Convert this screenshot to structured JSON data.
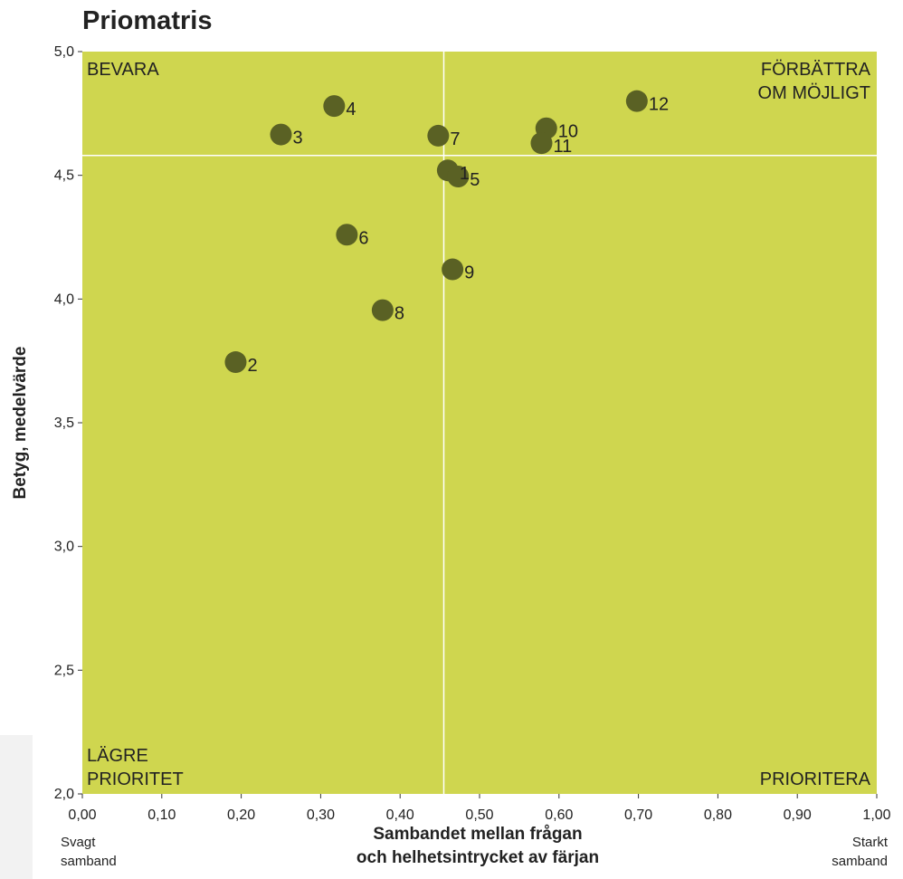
{
  "chart_data": {
    "type": "scatter",
    "title": "Priomatris",
    "xlabel_lines": [
      "Sambandet mellan frågan",
      "och helhetsintrycket av färjan"
    ],
    "ylabel": "Betyg, medelvärde",
    "x_left_note": [
      "Svagt",
      "samband"
    ],
    "x_right_note": [
      "Starkt",
      "samband"
    ],
    "xlim": [
      0,
      1
    ],
    "ylim": [
      2,
      5
    ],
    "x_ticks": [
      "0,00",
      "0,10",
      "0,20",
      "0,30",
      "0,40",
      "0,50",
      "0,60",
      "0,70",
      "0,80",
      "0,90",
      "1,00"
    ],
    "y_ticks": [
      "2,0",
      "2,5",
      "3,0",
      "3,5",
      "4,0",
      "4,5",
      "5,0"
    ],
    "quadrants": {
      "top_left": [
        "BEVARA"
      ],
      "top_right": [
        "FÖRBÄTTRA",
        "OM MÖJLIGT"
      ],
      "bottom_left": [
        "LÄGRE",
        "PRIORITET"
      ],
      "bottom_right": [
        "PRIORITERA"
      ]
    },
    "divider_x": 0.455,
    "divider_y": 4.58,
    "background_color": "#cfd64f",
    "marker_color": "#5a6124",
    "divider_color": "#ffffff",
    "points": [
      {
        "label": "1",
        "x": 0.46,
        "y": 4.52
      },
      {
        "label": "2",
        "x": 0.193,
        "y": 3.745
      },
      {
        "label": "3",
        "x": 0.25,
        "y": 4.665
      },
      {
        "label": "4",
        "x": 0.317,
        "y": 4.78
      },
      {
        "label": "5",
        "x": 0.473,
        "y": 4.495
      },
      {
        "label": "6",
        "x": 0.333,
        "y": 4.26
      },
      {
        "label": "7",
        "x": 0.448,
        "y": 4.66
      },
      {
        "label": "8",
        "x": 0.378,
        "y": 3.955
      },
      {
        "label": "9",
        "x": 0.466,
        "y": 4.12
      },
      {
        "label": "10",
        "x": 0.584,
        "y": 4.69
      },
      {
        "label": "11",
        "x": 0.578,
        "y": 4.63
      },
      {
        "label": "12",
        "x": 0.698,
        "y": 4.8
      }
    ]
  }
}
